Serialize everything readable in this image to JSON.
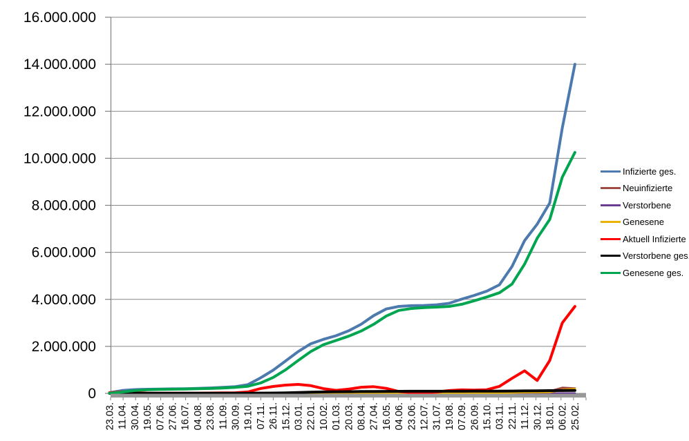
{
  "chart_data": {
    "type": "line",
    "title": "",
    "grid": "horizontal",
    "legend_position": "right",
    "x_tick_labels": [
      "23.03.",
      "11.04.",
      "30.04.",
      "19.05.",
      "07.06.",
      "27.06.",
      "16.07.",
      "04.08.",
      "23.08.",
      "11.09.",
      "30.09.",
      "19.10.",
      "07.11.",
      "26.11.",
      "15.12.",
      "03.01.",
      "22.01.",
      "10.02.",
      "01.03.",
      "20.03.",
      "08.04.",
      "27.04.",
      "16.05.",
      "04.06.",
      "23.06.",
      "12.07.",
      "31.07.",
      "19.08.",
      "07.09.",
      "26.09.",
      "15.10.",
      "03.11.",
      "22.11.",
      "11.12.",
      "30.12.",
      "18.01.",
      "06.02.",
      "25.02."
    ],
    "y_axis": {
      "min": 0,
      "max": 16000000,
      "ticks": [
        {
          "value": 0,
          "label": "0"
        },
        {
          "value": 2000000,
          "label": "2.000.000"
        },
        {
          "value": 4000000,
          "label": "4.000.000"
        },
        {
          "value": 6000000,
          "label": "6.000.000"
        },
        {
          "value": 8000000,
          "label": "8.000.000"
        },
        {
          "value": 10000000,
          "label": "10.000.000"
        },
        {
          "value": 12000000,
          "label": "12.000.000"
        },
        {
          "value": 14000000,
          "label": "14.000.000"
        },
        {
          "value": 16000000,
          "label": "16.000.000"
        }
      ]
    },
    "series": [
      {
        "name": "Infizierte ges.",
        "color": "#4C79AE",
        "values": [
          29000,
          124000,
          161000,
          176000,
          184000,
          193000,
          201000,
          211000,
          232000,
          259000,
          289000,
          373000,
          658000,
          983000,
          1380000,
          1780000,
          2110000,
          2300000,
          2450000,
          2660000,
          2940000,
          3310000,
          3590000,
          3700000,
          3730000,
          3740000,
          3770000,
          3830000,
          4010000,
          4170000,
          4350000,
          4620000,
          5400000,
          6500000,
          7200000,
          8100000,
          11300000,
          14000000
        ]
      },
      {
        "name": "Neuinfizierte",
        "color": "#9F4B44",
        "values": [
          3900,
          4100,
          1600,
          600,
          300,
          500,
          500,
          900,
          1500,
          1400,
          2500,
          7000,
          21000,
          22000,
          26000,
          12000,
          16000,
          8000,
          5000,
          13000,
          20000,
          22000,
          8000,
          3000,
          1000,
          600,
          2000,
          8000,
          12000,
          7000,
          11000,
          34000,
          48000,
          53000,
          40000,
          90000,
          240000,
          215000
        ]
      },
      {
        "name": "Verstorbene",
        "color": "#6A3B8E",
        "values": [
          30,
          170,
          190,
          110,
          30,
          10,
          10,
          10,
          10,
          5,
          15,
          30,
          120,
          340,
          590,
          780,
          840,
          650,
          330,
          230,
          230,
          280,
          210,
          120,
          70,
          30,
          20,
          20,
          50,
          60,
          80,
          130,
          230,
          350,
          380,
          300,
          240,
          220
        ]
      },
      {
        "name": "Genesene",
        "color": "#E9B300",
        "values": [
          0,
          3500,
          3000,
          1100,
          500,
          400,
          400,
          700,
          1100,
          1200,
          2000,
          4500,
          14000,
          20000,
          23000,
          20000,
          18000,
          11000,
          6000,
          9000,
          16000,
          21000,
          14000,
          6000,
          2000,
          800,
          1200,
          5000,
          11000,
          9000,
          9000,
          20000,
          33000,
          45000,
          48000,
          55000,
          150000,
          190000
        ]
      },
      {
        "name": "Aktuell Infizierte",
        "color": "#FF0000",
        "values": [
          25000,
          64000,
          35000,
          13000,
          7000,
          7000,
          6000,
          9000,
          16000,
          21000,
          26000,
          62000,
          206000,
          295000,
          352000,
          382000,
          330000,
          204000,
          130000,
          180000,
          262000,
          285000,
          215000,
          80000,
          32000,
          22000,
          55000,
          120000,
          150000,
          140000,
          155000,
          300000,
          640000,
          960000,
          550000,
          1400000,
          3000000,
          3700000
        ]
      },
      {
        "name": "Verstorbene ges.",
        "color": "#000000",
        "values": [
          160,
          2700,
          6300,
          8100,
          8700,
          8900,
          9100,
          9200,
          9300,
          9400,
          9500,
          9800,
          11300,
          14800,
          22900,
          34800,
          50600,
          63000,
          70500,
          74700,
          77800,
          82300,
          86100,
          89200,
          90400,
          91200,
          91700,
          91900,
          92400,
          93300,
          94600,
          96300,
          99400,
          105000,
          111600,
          116000,
          118900,
          122000
        ]
      },
      {
        "name": "Genesene ges.",
        "color": "#00A550",
        "values": [
          10000,
          57000,
          120000,
          155000,
          169000,
          177000,
          186000,
          196000,
          207000,
          229000,
          254000,
          301000,
          441000,
          673000,
          1005000,
          1400000,
          1780000,
          2070000,
          2250000,
          2430000,
          2650000,
          2940000,
          3290000,
          3530000,
          3610000,
          3650000,
          3670000,
          3700000,
          3790000,
          3940000,
          4100000,
          4280000,
          4650000,
          5500000,
          6600000,
          7400000,
          9200000,
          10250000
        ]
      }
    ],
    "axis_colors": {
      "gridline": "#878787",
      "axis_line": "#808080",
      "baseline_bar": "#999999"
    }
  }
}
